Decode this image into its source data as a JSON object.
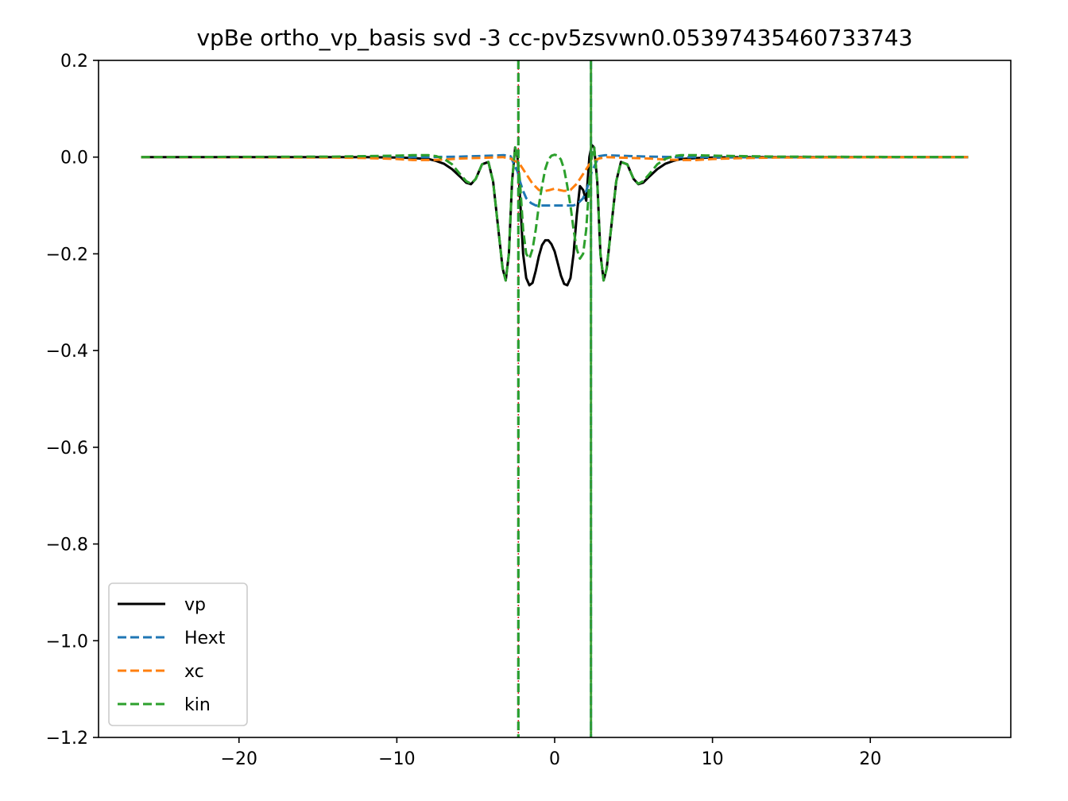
{
  "chart_data": {
    "type": "line",
    "title": "vpBe ortho_vp_basis svd -3 cc-pv5zsvwn0.05397435460733743",
    "xlabel": "",
    "ylabel": "",
    "xlim": [
      -28.9,
      28.9
    ],
    "ylim": [
      -1.2,
      0.2
    ],
    "xticks": [
      -20,
      -10,
      0,
      10,
      20
    ],
    "xtick_labels": [
      "−20",
      "−10",
      "0",
      "10",
      "20"
    ],
    "yticks": [
      0.2,
      0.0,
      -0.2,
      -0.4,
      -0.6,
      -0.8,
      -1.0,
      -1.2
    ],
    "ytick_labels": [
      "0.2",
      "0.0",
      "−0.2",
      "−0.4",
      "−0.6",
      "−0.8",
      "−1.0",
      "−1.2"
    ],
    "grid": false,
    "legend_position": "lower-left",
    "nuclei_x": [
      -2.3,
      2.3
    ],
    "series": [
      {
        "name": "vp",
        "color": "#000000",
        "style": "solid",
        "x": [
          -26.2,
          -12,
          -10,
          -9,
          -8,
          -7.5,
          -7,
          -6.5,
          -6,
          -5.6,
          -5.3,
          -5,
          -4.6,
          -4.2,
          -3.9,
          -3.6,
          -3.3,
          -3.1,
          -2.9,
          -2.7,
          -2.5,
          -2.35,
          -2.2,
          -2.0,
          -1.8,
          -1.6,
          -1.4,
          -1.2,
          -1.0,
          -0.8,
          -0.6,
          -0.4,
          -0.2,
          0.0,
          0.2,
          0.4,
          0.6,
          0.8,
          1.0,
          1.2,
          1.4,
          1.6,
          1.8,
          2.0,
          2.2,
          2.35,
          2.5,
          2.7,
          2.9,
          3.1,
          3.3,
          3.6,
          3.9,
          4.2,
          4.6,
          5.0,
          5.3,
          5.6,
          6.0,
          6.5,
          7.0,
          7.5,
          8.0,
          9.0,
          10.0,
          12.0,
          26.2
        ],
        "y": [
          0,
          0,
          -0.001,
          -0.002,
          -0.004,
          -0.008,
          -0.014,
          -0.025,
          -0.04,
          -0.053,
          -0.056,
          -0.045,
          -0.015,
          -0.01,
          -0.05,
          -0.14,
          -0.23,
          -0.255,
          -0.2,
          -0.05,
          0.02,
          0.0,
          -0.08,
          -0.2,
          -0.25,
          -0.265,
          -0.26,
          -0.235,
          -0.205,
          -0.182,
          -0.172,
          -0.172,
          -0.18,
          -0.195,
          -0.22,
          -0.245,
          -0.262,
          -0.265,
          -0.25,
          -0.2,
          -0.12,
          -0.06,
          -0.068,
          -0.09,
          0.0,
          0.025,
          0.02,
          -0.05,
          -0.2,
          -0.255,
          -0.23,
          -0.14,
          -0.05,
          -0.01,
          -0.015,
          -0.045,
          -0.056,
          -0.053,
          -0.04,
          -0.025,
          -0.014,
          -0.008,
          -0.004,
          -0.002,
          -0.001,
          0,
          0
        ]
      },
      {
        "name": "Hext",
        "color": "#1f77b4",
        "style": "dashed",
        "x": [
          -26.2,
          -12,
          -8,
          -6,
          -5,
          -4,
          -3.2,
          -2.8,
          -2.5,
          -2.35,
          -2.2,
          -2.0,
          -1.8,
          -1.5,
          -1.2,
          -0.8,
          -0.4,
          0.0,
          0.4,
          0.8,
          1.2,
          1.5,
          1.8,
          2.0,
          2.2,
          2.35,
          2.5,
          2.8,
          3.2,
          4,
          5,
          6,
          8,
          12,
          26.2
        ],
        "y": [
          0,
          0,
          0.0,
          0.001,
          0.002,
          0.003,
          0.004,
          0.002,
          -0.02,
          -0.03,
          -0.05,
          -0.07,
          -0.085,
          -0.095,
          -0.1,
          -0.1,
          -0.1,
          -0.1,
          -0.1,
          -0.1,
          -0.1,
          -0.095,
          -0.085,
          -0.07,
          -0.05,
          -0.03,
          -0.02,
          0.002,
          0.004,
          0.003,
          0.002,
          0.001,
          0.0,
          0,
          0
        ]
      },
      {
        "name": "xc",
        "color": "#ff7f0e",
        "style": "dashed",
        "x": [
          -26.2,
          -14,
          -12,
          -10,
          -9,
          -8,
          -7,
          -6,
          -5,
          -4,
          -3.3,
          -2.8,
          -2.5,
          -2.2,
          -1.8,
          -1.4,
          -1.0,
          -0.6,
          -0.3,
          0.0,
          0.3,
          0.6,
          1.0,
          1.4,
          1.8,
          2.2,
          2.5,
          2.8,
          3.3,
          4,
          5,
          6,
          7,
          8,
          9,
          10,
          12,
          14,
          26.2
        ],
        "y": [
          0,
          -0.001,
          -0.002,
          -0.004,
          -0.006,
          -0.006,
          -0.005,
          -0.003,
          -0.002,
          -0.001,
          0.0,
          -0.003,
          -0.008,
          -0.015,
          -0.035,
          -0.055,
          -0.068,
          -0.07,
          -0.068,
          -0.065,
          -0.068,
          -0.07,
          -0.068,
          -0.055,
          -0.035,
          -0.015,
          -0.008,
          -0.003,
          0.0,
          -0.001,
          -0.002,
          -0.003,
          -0.005,
          -0.006,
          -0.006,
          -0.004,
          -0.002,
          -0.001,
          0
        ]
      },
      {
        "name": "kin",
        "color": "#2ca02c",
        "style": "dashed",
        "x": [
          -26.2,
          -14,
          -12,
          -10,
          -9,
          -8,
          -7.5,
          -7,
          -6.5,
          -6,
          -5.6,
          -5.3,
          -5.0,
          -4.6,
          -4.2,
          -3.9,
          -3.6,
          -3.3,
          -3.1,
          -2.9,
          -2.7,
          -2.5,
          -2.35,
          -2.2,
          -2.0,
          -1.8,
          -1.6,
          -1.4,
          -1.2,
          -1.0,
          -0.8,
          -0.6,
          -0.4,
          -0.2,
          0.0,
          0.2,
          0.4,
          0.6,
          0.8,
          1.0,
          1.2,
          1.4,
          1.6,
          1.8,
          2.0,
          2.2,
          2.35,
          2.5,
          2.7,
          2.9,
          3.1,
          3.3,
          3.6,
          3.9,
          4.2,
          4.6,
          5.0,
          5.3,
          5.6,
          6.0,
          6.5,
          7.0,
          7.5,
          8.0,
          9.0,
          10.0,
          12.0,
          14.0,
          26.2
        ],
        "y": [
          0,
          0.001,
          0.002,
          0.003,
          0.004,
          0.004,
          0.002,
          -0.004,
          -0.015,
          -0.035,
          -0.05,
          -0.055,
          -0.045,
          -0.015,
          -0.01,
          -0.05,
          -0.14,
          -0.23,
          -0.255,
          -0.2,
          -0.05,
          0.02,
          0.0,
          -0.05,
          -0.15,
          -0.2,
          -0.21,
          -0.19,
          -0.15,
          -0.1,
          -0.06,
          -0.025,
          -0.005,
          0.003,
          0.005,
          0.003,
          -0.005,
          -0.025,
          -0.06,
          -0.1,
          -0.15,
          -0.19,
          -0.21,
          -0.2,
          -0.15,
          -0.05,
          0.0,
          0.02,
          -0.05,
          -0.2,
          -0.255,
          -0.23,
          -0.14,
          -0.05,
          -0.01,
          -0.015,
          -0.045,
          -0.055,
          -0.05,
          -0.035,
          -0.015,
          -0.004,
          0.002,
          0.004,
          0.004,
          0.003,
          0.002,
          0.001,
          0
        ]
      }
    ]
  }
}
